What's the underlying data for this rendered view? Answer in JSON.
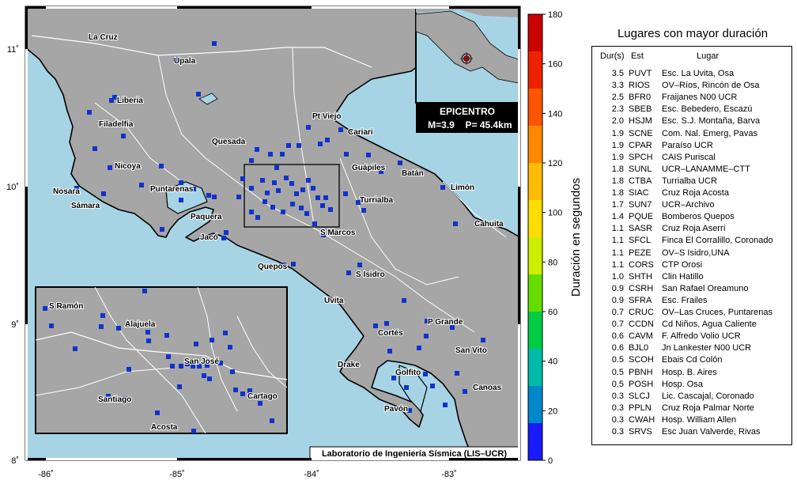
{
  "map": {
    "x_ticks": [
      "-86˚",
      "-85˚",
      "-84˚",
      "-83˚"
    ],
    "y_ticks": [
      "11˚",
      "10˚",
      "9˚",
      "8˚"
    ],
    "credit": "Laboratorio de Ingeniería Sísmica (LIS–UCR)",
    "places": [
      "La Cruz",
      "Upala",
      "Liberia",
      "Filadelfia",
      "Nicoya",
      "Nosara",
      "Sámara",
      "Puntarenas",
      "Paquera",
      "Jacó",
      "Quesada",
      "Pt Viejo",
      "Cariari",
      "Guápiles",
      "Batán",
      "Limón",
      "Turrialba",
      "S Marcos",
      "Cahuita",
      "Quepos",
      "S Isidro",
      "Uvita",
      "P Grande",
      "Cortés",
      "San Vito",
      "Drake",
      "Golfito",
      "Canoas",
      "Pavón"
    ],
    "inset_places": [
      "S Ramón",
      "Alajuela",
      "San José",
      "Santiago",
      "Cartago",
      "Acosta"
    ],
    "colors": {
      "sea": "#a6d4e4",
      "land": "#a6a6a6",
      "station": "#1133cc"
    }
  },
  "epicenter": {
    "label": "EPICENTRO",
    "magnitude": "M=3.9",
    "depth": "P= 45.4km"
  },
  "colorbar": {
    "label": "Duración en segundos",
    "ticks": [
      "180",
      "160",
      "140",
      "120",
      "100",
      "80",
      "60",
      "40",
      "20",
      "0"
    ],
    "colors": [
      "#1a1aff",
      "#0088cc",
      "#00bbaa",
      "#00cc44",
      "#66dd00",
      "#ccee00",
      "#ffdd00",
      "#ffbb00",
      "#ff8800",
      "#ff5500",
      "#ee2200",
      "#cc0000"
    ]
  },
  "table": {
    "title": "Lugares con mayor duración",
    "headers": {
      "dur": "Dur(s)",
      "est": "Est",
      "lugar": "Lugar"
    },
    "rows": [
      {
        "dur": "3.5",
        "est": "PUVT",
        "lugar": "Esc. La Uvita, Osa"
      },
      {
        "dur": "3.3",
        "est": "RIOS",
        "lugar": "OV–Ríos, Rincón de Osa"
      },
      {
        "dur": "2.5",
        "est": "BFR0",
        "lugar": "Fraijanes N00 UCR"
      },
      {
        "dur": "2.3",
        "est": "SBEB",
        "lugar": "Esc. Bebedero, Escazú"
      },
      {
        "dur": "2.0",
        "est": "HSJM",
        "lugar": "Esc. S.J. Montaña, Barva"
      },
      {
        "dur": "1.9",
        "est": "SCNE",
        "lugar": "Com. Nal. Emerg, Pavas"
      },
      {
        "dur": "1.9",
        "est": "CPAR",
        "lugar": "Paraíso UCR"
      },
      {
        "dur": "1.9",
        "est": "SPCH",
        "lugar": "CAIS Puriscal"
      },
      {
        "dur": "1.8",
        "est": "SUNL",
        "lugar": "UCR–LANAMME–CTT"
      },
      {
        "dur": "1.8",
        "est": "CTBA",
        "lugar": "Turrialba UCR"
      },
      {
        "dur": "1.8",
        "est": "SIAC",
        "lugar": "Cruz Roja Acosta"
      },
      {
        "dur": "1.7",
        "est": "SUN7",
        "lugar": "UCR–Archivo"
      },
      {
        "dur": "1.4",
        "est": "PQUE",
        "lugar": "Bomberos Quepos"
      },
      {
        "dur": "1.1",
        "est": "SASR",
        "lugar": "Cruz Roja Aserrí"
      },
      {
        "dur": "1.1",
        "est": "SFCL",
        "lugar": "Finca El Corralillo, Coronado"
      },
      {
        "dur": "1.1",
        "est": "PEZE",
        "lugar": "OV–S Isidro,UNA"
      },
      {
        "dur": "1.1",
        "est": "CORS",
        "lugar": "CTP Orosi"
      },
      {
        "dur": "1.0",
        "est": "SHTH",
        "lugar": "Clin Hatillo"
      },
      {
        "dur": "0.9",
        "est": "CSRH",
        "lugar": "San Rafael Oreamuno"
      },
      {
        "dur": "0.9",
        "est": "SFRA",
        "lugar": "Esc. Frailes"
      },
      {
        "dur": "0.7",
        "est": "CRUC",
        "lugar": "OV–Las Cruces, Puntarenas"
      },
      {
        "dur": "0.7",
        "est": "CCDN",
        "lugar": "Cd Niños, Agua Caliente"
      },
      {
        "dur": "0.6",
        "est": "CAVM",
        "lugar": "F. Alfredo Volio UCR"
      },
      {
        "dur": "0.6",
        "est": "BJL0",
        "lugar": "Jn Lankester N00 UCR"
      },
      {
        "dur": "0.5",
        "est": "SCOH",
        "lugar": "Ebais Cd Colón"
      },
      {
        "dur": "0.5",
        "est": "PBNH",
        "lugar": "Hosp. B. Aires"
      },
      {
        "dur": "0.5",
        "est": "POSH",
        "lugar": "Hosp. Osa"
      },
      {
        "dur": "0.3",
        "est": "SLCJ",
        "lugar": "Lic. Cascajal, Coronado"
      },
      {
        "dur": "0.3",
        "est": "PPLN",
        "lugar": "Cruz Roja Palmar Norte"
      },
      {
        "dur": "0.3",
        "est": "CWAH",
        "lugar": "Hosp. William Allen"
      },
      {
        "dur": "0.3",
        "est": "SRVS",
        "lugar": "Esc Juan Valverde, Rivas"
      }
    ]
  }
}
